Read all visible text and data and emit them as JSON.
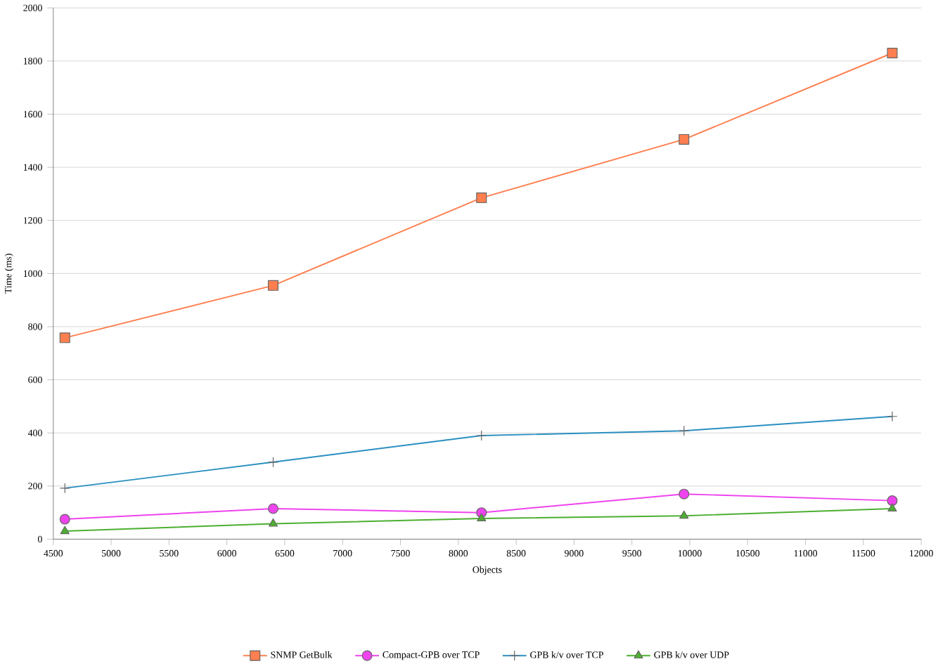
{
  "chart_data": {
    "type": "line",
    "xlabel": "Objects",
    "ylabel": "Time (ms)",
    "xlim": [
      4500,
      12000
    ],
    "xticks": [
      4500,
      5000,
      5500,
      6000,
      6500,
      7000,
      7500,
      8000,
      8500,
      9000,
      9500,
      10000,
      10500,
      11000,
      11500,
      12000
    ],
    "ylim": [
      0,
      2000
    ],
    "yticks": [
      0,
      200,
      400,
      600,
      800,
      1000,
      1200,
      1400,
      1600,
      1800,
      2000
    ],
    "grid": "y",
    "legend": "bottom",
    "line_style": "solid",
    "x": [
      4600,
      6400,
      8200,
      9950,
      11750
    ],
    "series": [
      {
        "name": "SNMP GetBulk",
        "color": "#ff7f50",
        "marker": "square",
        "values": [
          758,
          955,
          1285,
          1505,
          1830
        ]
      },
      {
        "name": "Compact-GPB over TCP",
        "color": "#ee44ee",
        "marker": "circle",
        "values": [
          75,
          115,
          100,
          170,
          145
        ]
      },
      {
        "name": "GPB k/v over TCP",
        "color": "#2a8fc0",
        "marker": "cross",
        "values": [
          192,
          290,
          390,
          408,
          462
        ]
      },
      {
        "name": "GPB k/v over UDP",
        "color": "#4caf30",
        "marker": "triangle",
        "values": [
          30,
          58,
          78,
          88,
          115
        ]
      }
    ]
  }
}
